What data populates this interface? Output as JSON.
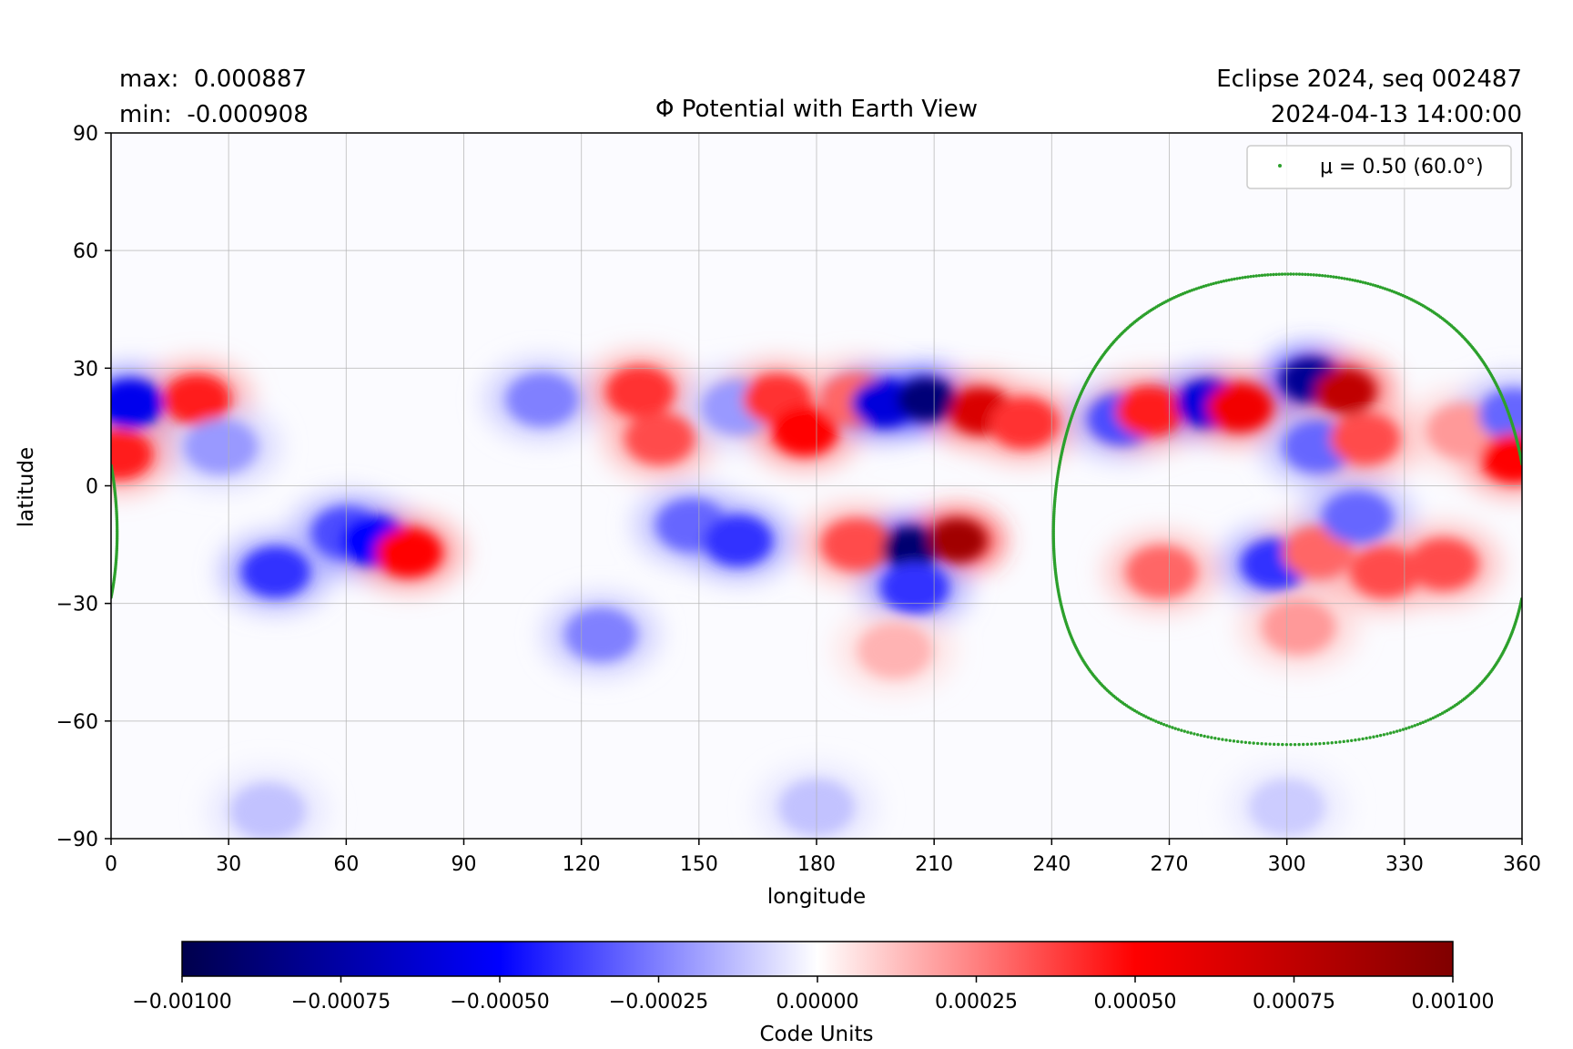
{
  "header": {
    "max_label": "max:  0.000887",
    "min_label": "min:  -0.000908",
    "title": "Φ Potential with Earth View",
    "run_label": "Eclipse 2024, seq 002487",
    "timestamp": "2024-04-13 14:00:00"
  },
  "chart_data": {
    "type": "heatmap",
    "title": "Φ Potential with Earth View",
    "xlabel": "longitude",
    "ylabel": "latitude",
    "xlim": [
      0,
      360
    ],
    "ylim": [
      -90,
      90
    ],
    "x_ticks": [
      "0",
      "30",
      "60",
      "90",
      "120",
      "150",
      "180",
      "210",
      "240",
      "270",
      "300",
      "330",
      "360"
    ],
    "y_ticks": [
      "90",
      "60",
      "30",
      "0",
      "−30",
      "−60",
      "−90"
    ],
    "grid": true,
    "colormap": "seismic",
    "colormap_stops": [
      "#00004c",
      "#0000ff",
      "#ffffff",
      "#ff0000",
      "#800000"
    ],
    "clim": [
      -0.001,
      0.001
    ],
    "colorbar": {
      "label": "Code Units",
      "ticks": [
        "−0.00100",
        "−0.00075",
        "−0.00050",
        "−0.00025",
        "0.00000",
        "0.00025",
        "0.00050",
        "0.00075",
        "0.00100"
      ]
    },
    "data_range": {
      "max": 0.000887,
      "min": -0.000908
    },
    "features": [
      {
        "lon": 5,
        "lat": 21,
        "value": -0.00055
      },
      {
        "lon": 22,
        "lat": 22,
        "value": 0.00045
      },
      {
        "lon": 28,
        "lat": 10,
        "value": -0.0002
      },
      {
        "lon": 42,
        "lat": -22,
        "value": -0.0004
      },
      {
        "lon": 60,
        "lat": -12,
        "value": -0.00035
      },
      {
        "lon": 67,
        "lat": -14,
        "value": -0.0005
      },
      {
        "lon": 76,
        "lat": -17,
        "value": 0.0005
      },
      {
        "lon": 2,
        "lat": 8,
        "value": 0.00045
      },
      {
        "lon": 110,
        "lat": 22,
        "value": -0.00025
      },
      {
        "lon": 135,
        "lat": 24,
        "value": 0.0004
      },
      {
        "lon": 140,
        "lat": 12,
        "value": 0.00035
      },
      {
        "lon": 160,
        "lat": 20,
        "value": -0.0002
      },
      {
        "lon": 170,
        "lat": 22,
        "value": 0.0004
      },
      {
        "lon": 177,
        "lat": 14,
        "value": 0.0005
      },
      {
        "lon": 190,
        "lat": 22,
        "value": 0.0003
      },
      {
        "lon": 197,
        "lat": 21,
        "value": -0.0006
      },
      {
        "lon": 208,
        "lat": 22,
        "value": -0.00088
      },
      {
        "lon": 222,
        "lat": 19,
        "value": 0.00065
      },
      {
        "lon": 233,
        "lat": 16,
        "value": 0.0004
      },
      {
        "lon": 148,
        "lat": -10,
        "value": -0.0003
      },
      {
        "lon": 160,
        "lat": -14,
        "value": -0.0004
      },
      {
        "lon": 125,
        "lat": -38,
        "value": -0.00025
      },
      {
        "lon": 190,
        "lat": -15,
        "value": 0.00035
      },
      {
        "lon": 204,
        "lat": -16,
        "value": -0.0009
      },
      {
        "lon": 216,
        "lat": -14,
        "value": 0.00087
      },
      {
        "lon": 205,
        "lat": -26,
        "value": -0.0004
      },
      {
        "lon": 200,
        "lat": -42,
        "value": 0.00015
      },
      {
        "lon": 258,
        "lat": 17,
        "value": -0.00035
      },
      {
        "lon": 265,
        "lat": 19,
        "value": 0.00045
      },
      {
        "lon": 280,
        "lat": 21,
        "value": -0.0006
      },
      {
        "lon": 288,
        "lat": 20,
        "value": 0.00055
      },
      {
        "lon": 306,
        "lat": 27,
        "value": -0.0008
      },
      {
        "lon": 315,
        "lat": 24,
        "value": 0.00075
      },
      {
        "lon": 308,
        "lat": 10,
        "value": -0.0003
      },
      {
        "lon": 320,
        "lat": 12,
        "value": 0.00035
      },
      {
        "lon": 345,
        "lat": 14,
        "value": 0.0002
      },
      {
        "lon": 358,
        "lat": 18,
        "value": -0.0003
      },
      {
        "lon": 358,
        "lat": 7,
        "value": 0.0005
      },
      {
        "lon": 268,
        "lat": -22,
        "value": 0.0003
      },
      {
        "lon": 297,
        "lat": -20,
        "value": -0.0004
      },
      {
        "lon": 308,
        "lat": -17,
        "value": 0.0003
      },
      {
        "lon": 318,
        "lat": -8,
        "value": -0.0003
      },
      {
        "lon": 325,
        "lat": -22,
        "value": 0.00035
      },
      {
        "lon": 340,
        "lat": -20,
        "value": 0.00035
      },
      {
        "lon": 303,
        "lat": -36,
        "value": 0.0002
      },
      {
        "lon": 180,
        "lat": -82,
        "value": -0.00012
      },
      {
        "lon": 40,
        "lat": -83,
        "value": -0.00012
      },
      {
        "lon": 300,
        "lat": -82,
        "value": -0.0001
      }
    ],
    "series": [
      {
        "name": "μ = 0.50 (60.0°)",
        "type": "scatter",
        "color": "#2ca02c",
        "shape": "circle",
        "center": {
          "lon": 301,
          "lat": -6
        },
        "radius_deg": 60
      }
    ],
    "legend": {
      "position": "top-right",
      "entries": [
        "μ = 0.50 (60.0°)"
      ]
    }
  }
}
